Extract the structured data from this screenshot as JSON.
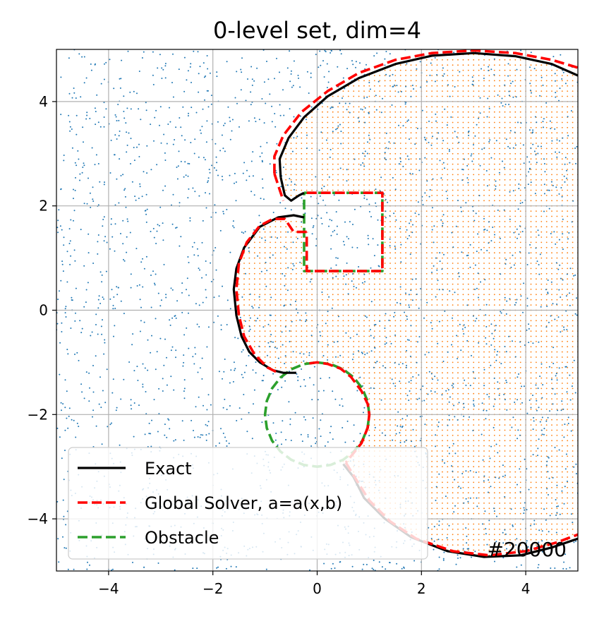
{
  "chart_data": {
    "type": "scatter",
    "title": "0-level set, dim=4",
    "xlabel": "",
    "ylabel": "",
    "xlim": [
      -5,
      5
    ],
    "ylim": [
      -5,
      5
    ],
    "x_ticks": [
      "−4",
      "−2",
      "0",
      "2",
      "4"
    ],
    "y_ticks": [
      "−4",
      "−2",
      "0",
      "2",
      "4"
    ],
    "x_tick_values": [
      -4,
      -2,
      0,
      2,
      4
    ],
    "y_tick_values": [
      -4,
      -2,
      0,
      2,
      4
    ],
    "grid": true,
    "legend_position": "lower-left",
    "annotation": "#20000",
    "colors": {
      "exact": "#000000",
      "global_solver": "#ff0000",
      "obstacle": "#2ca02c",
      "sample_points": "#1f77b4",
      "inside_points": "#ff7f0e",
      "grid": "#b0b0b0"
    },
    "series": [
      {
        "name": "Exact",
        "style": "solid",
        "segments": [
          [
            [
              -0.7,
              2.55
            ],
            [
              -0.72,
              2.9
            ],
            [
              -0.55,
              3.3
            ],
            [
              -0.25,
              3.7
            ],
            [
              0.2,
              4.1
            ],
            [
              0.8,
              4.45
            ],
            [
              1.5,
              4.72
            ],
            [
              2.2,
              4.88
            ],
            [
              3.0,
              4.93
            ],
            [
              3.8,
              4.87
            ],
            [
              4.5,
              4.72
            ],
            [
              5.0,
              4.5
            ]
          ],
          [
            [
              -0.7,
              2.55
            ],
            [
              -0.62,
              2.2
            ],
            [
              -0.5,
              2.1
            ],
            [
              -0.35,
              2.2
            ],
            [
              -0.25,
              2.25
            ]
          ],
          [
            [
              -0.25,
              1.78
            ],
            [
              -0.45,
              1.82
            ],
            [
              -0.75,
              1.78
            ],
            [
              -1.1,
              1.6
            ],
            [
              -1.4,
              1.2
            ],
            [
              -1.55,
              0.8
            ],
            [
              -1.6,
              0.4
            ],
            [
              -1.55,
              -0.1
            ],
            [
              -1.45,
              -0.5
            ],
            [
              -1.3,
              -0.8
            ],
            [
              -1.1,
              -1.0
            ],
            [
              -0.85,
              -1.15
            ],
            [
              -0.65,
              -1.2
            ],
            [
              -0.4,
              -1.2
            ]
          ],
          [
            [
              0.5,
              -2.95
            ],
            [
              0.7,
              -3.2
            ],
            [
              0.9,
              -3.6
            ],
            [
              1.3,
              -4.0
            ],
            [
              1.8,
              -4.35
            ],
            [
              2.5,
              -4.62
            ],
            [
              3.2,
              -4.73
            ],
            [
              3.9,
              -4.7
            ],
            [
              4.5,
              -4.55
            ],
            [
              5.0,
              -4.38
            ]
          ]
        ]
      },
      {
        "name": "Global Solver, a=a(x,b)",
        "style": "dashed",
        "segments": [
          [
            [
              -0.82,
              2.62
            ],
            [
              -0.82,
              2.95
            ],
            [
              -0.65,
              3.35
            ],
            [
              -0.3,
              3.8
            ],
            [
              0.2,
              4.2
            ],
            [
              0.8,
              4.55
            ],
            [
              1.5,
              4.8
            ],
            [
              2.2,
              4.93
            ],
            [
              3.0,
              4.98
            ],
            [
              3.8,
              4.93
            ],
            [
              4.5,
              4.8
            ],
            [
              5.0,
              4.65
            ]
          ],
          [
            [
              -0.82,
              2.62
            ],
            [
              -0.75,
              2.4
            ],
            [
              -0.65,
              2.1
            ]
          ],
          [
            [
              -0.2,
              2.25
            ],
            [
              1.25,
              2.25
            ],
            [
              1.25,
              0.75
            ],
            [
              -0.2,
              0.75
            ],
            [
              -0.2,
              1.5
            ]
          ],
          [
            [
              -0.2,
              1.5
            ],
            [
              -0.45,
              1.5
            ],
            [
              -0.62,
              1.75
            ],
            [
              -0.85,
              1.75
            ],
            [
              -1.1,
              1.62
            ],
            [
              -1.35,
              1.3
            ],
            [
              -1.5,
              0.9
            ],
            [
              -1.55,
              0.4
            ],
            [
              -1.5,
              -0.1
            ],
            [
              -1.4,
              -0.5
            ],
            [
              -1.2,
              -0.85
            ],
            [
              -0.95,
              -1.1
            ],
            [
              -0.75,
              -1.2
            ]
          ],
          [
            [
              -0.15,
              -1.02
            ],
            [
              0.0,
              -1.0
            ],
            [
              0.2,
              -1.03
            ],
            [
              0.45,
              -1.12
            ],
            [
              0.65,
              -1.28
            ],
            [
              0.85,
              -1.55
            ],
            [
              0.97,
              -1.8
            ],
            [
              1.0,
              -2.0
            ],
            [
              0.97,
              -2.25
            ],
            [
              0.85,
              -2.55
            ],
            [
              0.65,
              -2.8
            ],
            [
              0.55,
              -2.92
            ]
          ],
          [
            [
              0.55,
              -2.92
            ],
            [
              0.75,
              -3.25
            ],
            [
              1.0,
              -3.65
            ],
            [
              1.4,
              -4.05
            ],
            [
              1.9,
              -4.38
            ],
            [
              2.6,
              -4.62
            ],
            [
              3.3,
              -4.7
            ],
            [
              4.0,
              -4.62
            ],
            [
              4.6,
              -4.45
            ],
            [
              5.0,
              -4.3
            ]
          ]
        ]
      },
      {
        "name": "Obstacle",
        "style": "dashed",
        "segments": [
          [
            [
              -0.25,
              2.25
            ],
            [
              1.25,
              2.25
            ],
            [
              1.25,
              0.75
            ],
            [
              -0.25,
              0.75
            ],
            [
              -0.25,
              2.25
            ]
          ],
          [
            [
              1.0,
              -2.0
            ],
            [
              0.966,
              -1.741
            ],
            [
              0.866,
              -1.5
            ],
            [
              0.707,
              -1.293
            ],
            [
              0.5,
              -1.134
            ],
            [
              0.259,
              -1.034
            ],
            [
              0.0,
              -1.0
            ],
            [
              -0.259,
              -1.034
            ],
            [
              -0.5,
              -1.134
            ],
            [
              -0.707,
              -1.293
            ],
            [
              -0.866,
              -1.5
            ],
            [
              -0.966,
              -1.741
            ],
            [
              -1.0,
              -2.0
            ],
            [
              -0.966,
              -2.259
            ],
            [
              -0.866,
              -2.5
            ],
            [
              -0.707,
              -2.707
            ],
            [
              -0.5,
              -2.866
            ],
            [
              -0.259,
              -2.966
            ],
            [
              0.0,
              -3.0
            ],
            [
              0.259,
              -2.966
            ],
            [
              0.5,
              -2.866
            ],
            [
              0.707,
              -2.707
            ],
            [
              0.866,
              -2.5
            ],
            [
              0.966,
              -2.259
            ],
            [
              1.0,
              -2.0
            ]
          ]
        ]
      }
    ],
    "scatter_points": "uniformly distributed sample points over [-5,5]x[-5,5]; inside points form a dense regular grid filling the region enclosed by the Exact curve, excluding the obstacles"
  }
}
